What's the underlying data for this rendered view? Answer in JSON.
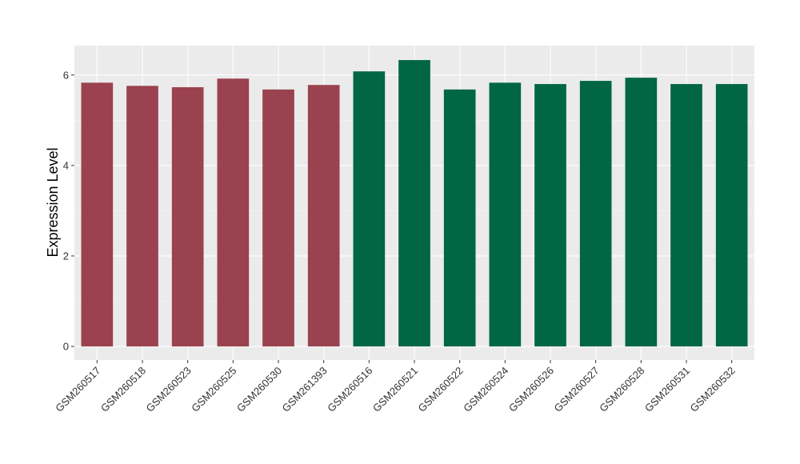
{
  "chart_data": {
    "type": "bar",
    "title": "",
    "xlabel": "",
    "ylabel": "Expression Level",
    "ylim": [
      -0.3,
      6.65
    ],
    "yticks": [
      0,
      2,
      4,
      6
    ],
    "grid": true,
    "legend": "none",
    "background": "#ebebeb",
    "categories": [
      "GSM260517",
      "GSM260518",
      "GSM260523",
      "GSM260525",
      "GSM260530",
      "GSM261393",
      "GSM260516",
      "GSM260521",
      "GSM260522",
      "GSM260524",
      "GSM260526",
      "GSM260527",
      "GSM260528",
      "GSM260531",
      "GSM260532"
    ],
    "values": [
      5.83,
      5.76,
      5.73,
      5.92,
      5.68,
      5.78,
      6.08,
      6.33,
      5.68,
      5.83,
      5.8,
      5.87,
      5.94,
      5.8,
      5.8
    ],
    "colors": [
      "#9a424f",
      "#9a424f",
      "#9a424f",
      "#9a424f",
      "#9a424f",
      "#9a424f",
      "#006644",
      "#006644",
      "#006644",
      "#006644",
      "#006644",
      "#006644",
      "#006644",
      "#006644",
      "#006644"
    ]
  }
}
